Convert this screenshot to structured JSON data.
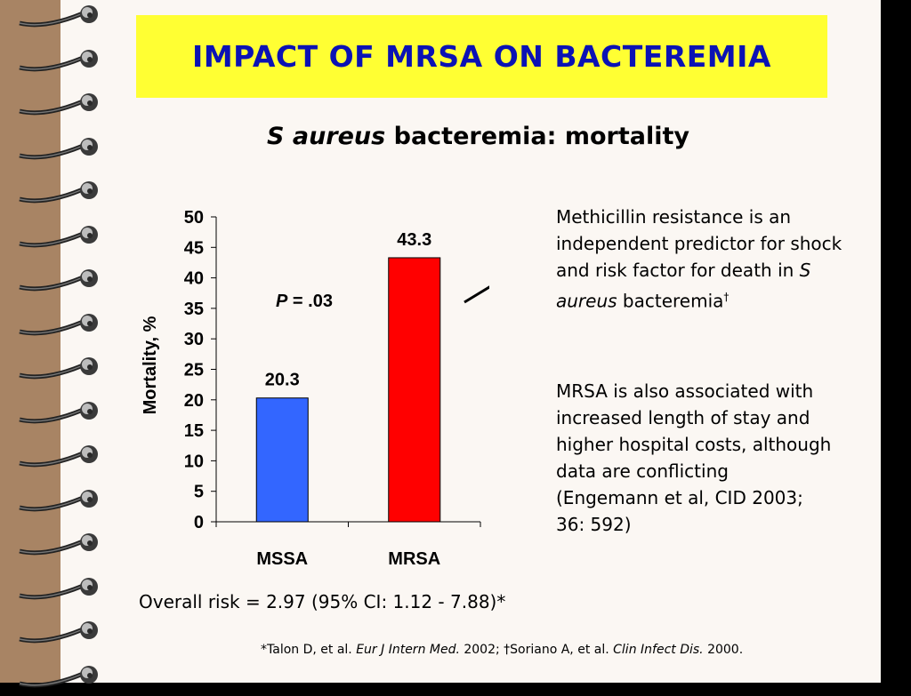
{
  "title": "IMPACT OF MRSA ON BACTEREMIA",
  "subtitle": {
    "italic": "S aureus",
    "rest": " bacteremia: mortality"
  },
  "chart_data": {
    "type": "bar",
    "categories": [
      "MSSA",
      "MRSA"
    ],
    "values": [
      20.3,
      43.3
    ],
    "data_labels": [
      "20.3",
      "43.3"
    ],
    "colors": [
      "#3366ff",
      "#ff0000"
    ],
    "ylabel": "Mortality, %",
    "ylim": [
      0,
      50
    ],
    "yticks": [
      0,
      5,
      10,
      15,
      20,
      25,
      30,
      35,
      40,
      45,
      50
    ],
    "grid": false,
    "annotation": {
      "italic": "P",
      "rest": " = .03"
    }
  },
  "notes": {
    "note1": {
      "text": "Methicillin resistance is an independent predictor for shock and risk factor for death in ",
      "italic": "S aureus",
      "after": " bacteremia",
      "sup": "†"
    },
    "note2": "MRSA is also associated with increased length of stay and higher hospital costs, although data are conflicting (Engemann et al, CID 2003; 36: 592)"
  },
  "overall_risk": "Overall risk = 2.97 (95% CI: 1.12 - 7.88)*",
  "references": {
    "p1": "*Talon D, et al. ",
    "j1": "Eur J Intern Med.",
    "p2": " 2002; †Soriano A, et al. ",
    "j2": "Clin Infect Dis.",
    "p3": " 2000."
  },
  "colors": {
    "title_bg": "#ffff33",
    "title_text": "#0b12b4",
    "binding": "#a88464"
  }
}
